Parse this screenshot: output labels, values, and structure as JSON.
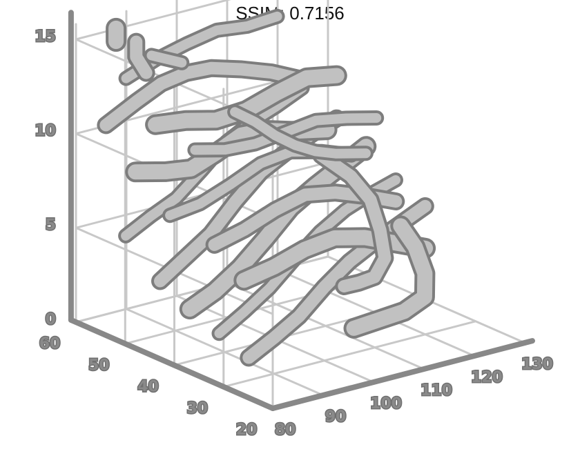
{
  "chart_data": {
    "type": "3d-streamtube",
    "title": "SSIM: 0.7156",
    "grid": true,
    "colors": {
      "tube_fill": "#cccccc",
      "tube_edge": "#7d7d7d",
      "axis": "#888888",
      "grid": "#c8c8c8",
      "background": "#ffffff"
    },
    "axes": {
      "x": {
        "ticks": [
          "80",
          "90",
          "100",
          "110",
          "120",
          "130"
        ],
        "range": [
          80,
          130
        ]
      },
      "y": {
        "ticks": [
          "20",
          "30",
          "40",
          "50",
          "60"
        ],
        "range": [
          20,
          60
        ]
      },
      "z": {
        "ticks": [
          "0",
          "5",
          "10",
          "15"
        ],
        "range": [
          0,
          15
        ]
      }
    },
    "tubes": [
      [
        [
          85,
          55,
          4.8
        ],
        [
          90,
          55,
          5.5
        ],
        [
          95,
          55,
          6.1
        ],
        [
          100,
          55,
          7.2
        ],
        [
          105,
          55,
          8.4
        ],
        [
          110,
          55,
          9.1
        ],
        [
          115,
          55,
          9.6
        ],
        [
          120,
          55,
          10.2
        ]
      ],
      [
        [
          85,
          48,
          3.2
        ],
        [
          90,
          48,
          4.1
        ],
        [
          95,
          48,
          5.0
        ],
        [
          100,
          48,
          6.4
        ],
        [
          105,
          48,
          7.6
        ],
        [
          110,
          48,
          8.3
        ],
        [
          115,
          48,
          8.9
        ],
        [
          120,
          48,
          9.4
        ]
      ],
      [
        [
          85,
          42,
          2.4
        ],
        [
          90,
          42,
          3.0
        ],
        [
          95,
          42,
          3.9
        ],
        [
          100,
          42,
          5.1
        ],
        [
          105,
          42,
          6.4
        ],
        [
          110,
          42,
          7.2
        ],
        [
          115,
          42,
          7.9
        ],
        [
          120,
          42,
          8.6
        ]
      ],
      [
        [
          85,
          36,
          1.8
        ],
        [
          90,
          36,
          2.6
        ],
        [
          95,
          36,
          3.5
        ],
        [
          100,
          36,
          4.7
        ],
        [
          105,
          36,
          5.8
        ],
        [
          110,
          36,
          6.6
        ],
        [
          115,
          36,
          7.1
        ],
        [
          120,
          36,
          7.5
        ]
      ],
      [
        [
          85,
          30,
          1.2
        ],
        [
          90,
          30,
          1.9
        ],
        [
          95,
          30,
          2.7
        ],
        [
          100,
          30,
          3.9
        ],
        [
          105,
          30,
          4.9
        ],
        [
          110,
          30,
          5.6
        ],
        [
          115,
          30,
          6.2
        ],
        [
          120,
          30,
          6.8
        ]
      ],
      [
        [
          84,
          52,
          8.6
        ],
        [
          90,
          52,
          8.2
        ],
        [
          95,
          52,
          8.0
        ],
        [
          100,
          52,
          8.5
        ],
        [
          105,
          52,
          9.1
        ],
        [
          110,
          52,
          9.0
        ],
        [
          115,
          52,
          8.6
        ],
        [
          122,
          52,
          8.2
        ]
      ],
      [
        [
          84,
          45,
          7.1
        ],
        [
          90,
          45,
          7.3
        ],
        [
          96,
          45,
          7.9
        ],
        [
          102,
          45,
          8.6
        ],
        [
          108,
          45,
          8.8
        ],
        [
          114,
          45,
          8.4
        ],
        [
          120,
          45,
          7.8
        ]
      ],
      [
        [
          86,
          38,
          6.2
        ],
        [
          92,
          38,
          6.6
        ],
        [
          98,
          38,
          7.2
        ],
        [
          104,
          38,
          7.6
        ],
        [
          110,
          38,
          7.3
        ],
        [
          116,
          38,
          6.7
        ],
        [
          122,
          38,
          6.0
        ]
      ],
      [
        [
          86,
          32,
          5.0
        ],
        [
          92,
          32,
          5.3
        ],
        [
          98,
          32,
          5.8
        ],
        [
          104,
          32,
          6.0
        ],
        [
          110,
          32,
          5.6
        ],
        [
          116,
          32,
          4.9
        ],
        [
          122,
          32,
          4.2
        ]
      ],
      [
        [
          88,
          58,
          12.6
        ],
        [
          94,
          58,
          13.2
        ],
        [
          100,
          58,
          13.6
        ],
        [
          106,
          58,
          13.9
        ],
        [
          112,
          58,
          13.7
        ],
        [
          118,
          58,
          13.8
        ]
      ],
      [
        [
          84,
          58,
          10.4
        ],
        [
          89,
          57,
          11.4
        ],
        [
          93,
          56,
          12.2
        ],
        [
          97,
          55,
          12.6
        ],
        [
          101,
          54,
          12.7
        ],
        [
          106,
          53,
          12.4
        ],
        [
          111,
          52,
          12.0
        ],
        [
          116,
          51,
          11.4
        ]
      ],
      [
        [
          86,
          50,
          11.2
        ],
        [
          92,
          50,
          11.0
        ],
        [
          98,
          50,
          10.6
        ],
        [
          104,
          50,
          10.7
        ],
        [
          110,
          50,
          11.2
        ],
        [
          116,
          50,
          11.6
        ],
        [
          122,
          50,
          11.3
        ]
      ],
      [
        [
          88,
          44,
          10.4
        ],
        [
          94,
          44,
          10.0
        ],
        [
          100,
          44,
          9.9
        ],
        [
          106,
          44,
          10.1
        ],
        [
          112,
          44,
          10.3
        ],
        [
          118,
          44,
          10.0
        ],
        [
          124,
          44,
          9.6
        ]
      ],
      [
        [
          100,
          26,
          4.4
        ],
        [
          104,
          27,
          4.2
        ],
        [
          108,
          28,
          4.1
        ],
        [
          112,
          30,
          4.6
        ],
        [
          114,
          33,
          5.6
        ],
        [
          115,
          36,
          6.8
        ],
        [
          115,
          40,
          7.6
        ],
        [
          114,
          45,
          8.2
        ]
      ],
      [
        [
          100,
          24,
          2.4
        ],
        [
          105,
          24,
          2.5
        ],
        [
          110,
          24,
          2.6
        ],
        [
          115,
          25,
          2.9
        ],
        [
          118,
          28,
          3.6
        ],
        [
          120,
          32,
          4.4
        ],
        [
          121,
          36,
          5.0
        ]
      ],
      [
        [
          92,
          40,
          12.6
        ],
        [
          96,
          40,
          11.8
        ],
        [
          100,
          40,
          10.8
        ],
        [
          104,
          40,
          10.0
        ],
        [
          108,
          40,
          9.4
        ],
        [
          112,
          40,
          9.0
        ],
        [
          118,
          40,
          8.6
        ]
      ],
      [
        [
          90,
          58,
          14.4
        ],
        [
          90,
          58,
          13.6
        ],
        [
          91,
          57,
          12.8
        ]
      ],
      [
        [
          86,
          58,
          15.4
        ],
        [
          86,
          58,
          14.7
        ]
      ],
      [
        [
          95,
          60,
          13.1
        ],
        [
          98,
          60,
          12.7
        ],
        [
          101,
          60,
          12.3
        ]
      ]
    ]
  }
}
